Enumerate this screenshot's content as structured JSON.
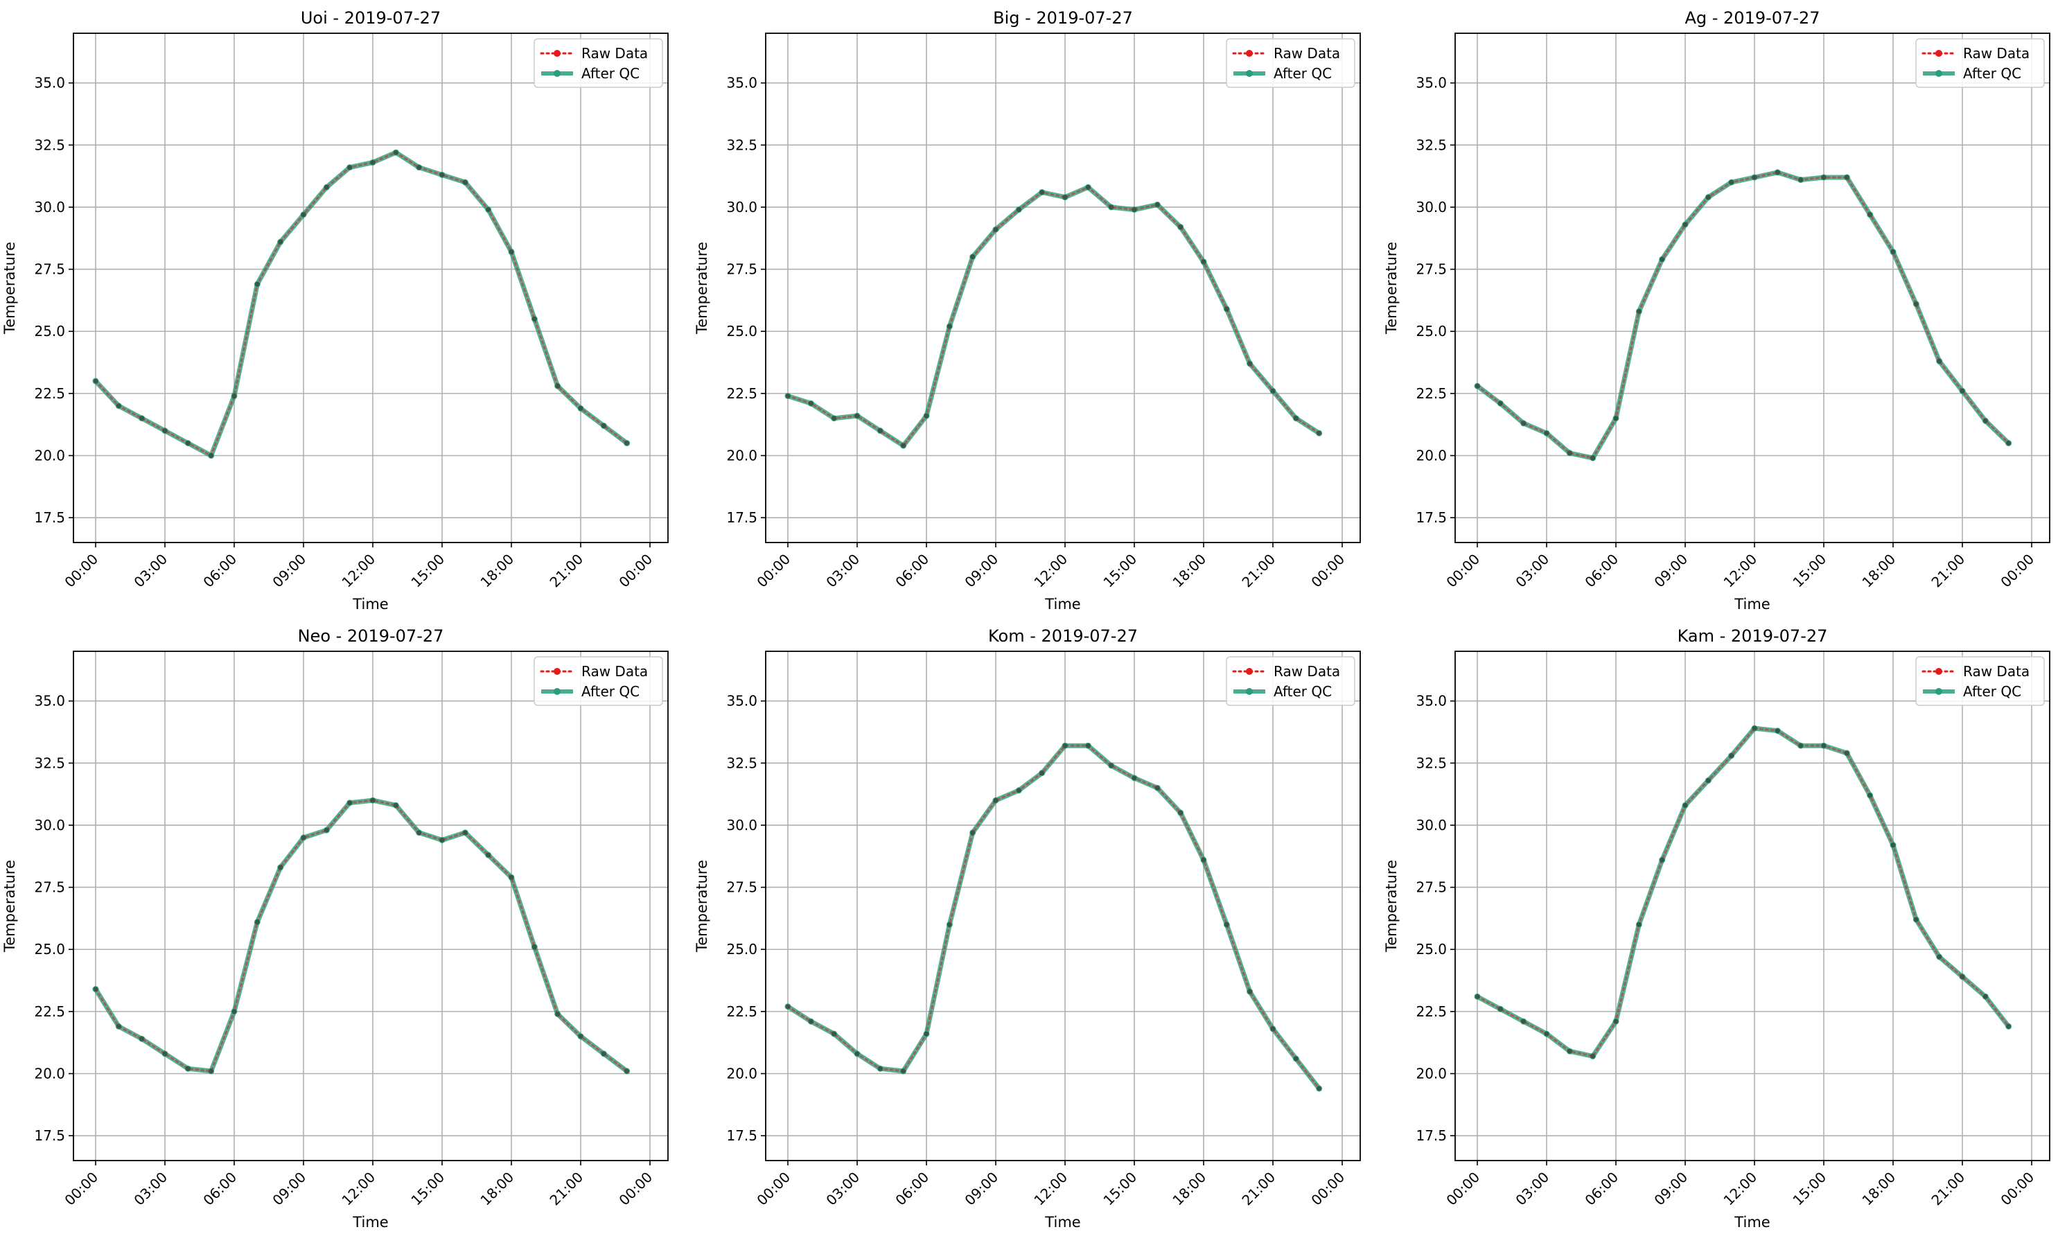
{
  "chart_data": [
    {
      "type": "line",
      "title": "Uoi - 2019-07-27",
      "xlabel": "Time",
      "ylabel": "Temperature",
      "ylim": [
        16.5,
        37.0
      ],
      "xlim": [
        "00:00",
        "24:00"
      ],
      "y_ticks": [
        "17.5",
        "20.0",
        "22.5",
        "25.0",
        "27.5",
        "30.0",
        "32.5",
        "35.0"
      ],
      "x_ticks": [
        "00:00",
        "03:00",
        "06:00",
        "09:00",
        "12:00",
        "15:00",
        "18:00",
        "21:00",
        "00:00"
      ],
      "grid": true,
      "legend_position": "top-right",
      "x": [
        "00:00",
        "01:00",
        "02:00",
        "03:00",
        "04:00",
        "05:00",
        "06:00",
        "07:00",
        "08:00",
        "09:00",
        "10:00",
        "11:00",
        "12:00",
        "13:00",
        "14:00",
        "15:00",
        "16:00",
        "17:00",
        "18:00",
        "19:00",
        "20:00",
        "21:00",
        "22:00",
        "23:00"
      ],
      "series": [
        {
          "name": "Raw Data",
          "color": "#e41a1c",
          "values": [
            23.0,
            22.0,
            21.5,
            21.0,
            20.5,
            20.0,
            22.4,
            26.9,
            28.6,
            29.7,
            30.8,
            31.6,
            31.8,
            32.2,
            31.6,
            31.3,
            31.0,
            29.9,
            28.2,
            25.5,
            22.8,
            21.9,
            21.2,
            20.5
          ]
        },
        {
          "name": "After QC",
          "color": "#2a9d7c",
          "values": [
            23.0,
            22.0,
            21.5,
            21.0,
            20.5,
            20.0,
            22.4,
            26.9,
            28.6,
            29.7,
            30.8,
            31.6,
            31.8,
            32.2,
            31.6,
            31.3,
            31.0,
            29.9,
            28.2,
            25.5,
            22.8,
            21.9,
            21.2,
            20.5
          ]
        }
      ]
    },
    {
      "type": "line",
      "title": "Big - 2019-07-27",
      "xlabel": "Time",
      "ylabel": "Temperature",
      "ylim": [
        16.5,
        37.0
      ],
      "xlim": [
        "00:00",
        "24:00"
      ],
      "y_ticks": [
        "17.5",
        "20.0",
        "22.5",
        "25.0",
        "27.5",
        "30.0",
        "32.5",
        "35.0"
      ],
      "x_ticks": [
        "00:00",
        "03:00",
        "06:00",
        "09:00",
        "12:00",
        "15:00",
        "18:00",
        "21:00",
        "00:00"
      ],
      "grid": true,
      "legend_position": "top-right",
      "x": [
        "00:00",
        "01:00",
        "02:00",
        "03:00",
        "04:00",
        "05:00",
        "06:00",
        "07:00",
        "08:00",
        "09:00",
        "10:00",
        "11:00",
        "12:00",
        "13:00",
        "14:00",
        "15:00",
        "16:00",
        "17:00",
        "18:00",
        "19:00",
        "20:00",
        "21:00",
        "22:00",
        "23:00"
      ],
      "series": [
        {
          "name": "Raw Data",
          "color": "#e41a1c",
          "values": [
            22.4,
            22.1,
            21.5,
            21.6,
            21.0,
            20.4,
            21.6,
            25.2,
            28.0,
            29.1,
            29.9,
            30.6,
            30.4,
            30.8,
            30.0,
            29.9,
            30.1,
            29.2,
            27.8,
            25.9,
            23.7,
            22.6,
            21.5,
            20.9
          ]
        },
        {
          "name": "After QC",
          "color": "#2a9d7c",
          "values": [
            22.4,
            22.1,
            21.5,
            21.6,
            21.0,
            20.4,
            21.6,
            25.2,
            28.0,
            29.1,
            29.9,
            30.6,
            30.4,
            30.8,
            30.0,
            29.9,
            30.1,
            29.2,
            27.8,
            25.9,
            23.7,
            22.6,
            21.5,
            20.9
          ]
        }
      ]
    },
    {
      "type": "line",
      "title": "Ag - 2019-07-27",
      "xlabel": "Time",
      "ylabel": "Temperature",
      "ylim": [
        16.5,
        37.0
      ],
      "xlim": [
        "00:00",
        "24:00"
      ],
      "y_ticks": [
        "17.5",
        "20.0",
        "22.5",
        "25.0",
        "27.5",
        "30.0",
        "32.5",
        "35.0"
      ],
      "x_ticks": [
        "00:00",
        "03:00",
        "06:00",
        "09:00",
        "12:00",
        "15:00",
        "18:00",
        "21:00",
        "00:00"
      ],
      "grid": true,
      "legend_position": "top-right",
      "x": [
        "00:00",
        "01:00",
        "02:00",
        "03:00",
        "04:00",
        "05:00",
        "06:00",
        "07:00",
        "08:00",
        "09:00",
        "10:00",
        "11:00",
        "12:00",
        "13:00",
        "14:00",
        "15:00",
        "16:00",
        "17:00",
        "18:00",
        "19:00",
        "20:00",
        "21:00",
        "22:00",
        "23:00"
      ],
      "series": [
        {
          "name": "Raw Data",
          "color": "#e41a1c",
          "values": [
            22.8,
            22.1,
            21.3,
            20.9,
            20.1,
            19.9,
            21.5,
            25.8,
            27.9,
            29.3,
            30.4,
            31.0,
            31.2,
            31.4,
            31.1,
            31.2,
            31.2,
            29.7,
            28.2,
            26.1,
            23.8,
            22.6,
            21.4,
            20.5
          ]
        },
        {
          "name": "After QC",
          "color": "#2a9d7c",
          "values": [
            22.8,
            22.1,
            21.3,
            20.9,
            20.1,
            19.9,
            21.5,
            25.8,
            27.9,
            29.3,
            30.4,
            31.0,
            31.2,
            31.4,
            31.1,
            31.2,
            31.2,
            29.7,
            28.2,
            26.1,
            23.8,
            22.6,
            21.4,
            20.5
          ]
        }
      ]
    },
    {
      "type": "line",
      "title": "Neo - 2019-07-27",
      "xlabel": "Time",
      "ylabel": "Temperature",
      "ylim": [
        16.5,
        37.0
      ],
      "xlim": [
        "00:00",
        "24:00"
      ],
      "y_ticks": [
        "17.5",
        "20.0",
        "22.5",
        "25.0",
        "27.5",
        "30.0",
        "32.5",
        "35.0"
      ],
      "x_ticks": [
        "00:00",
        "03:00",
        "06:00",
        "09:00",
        "12:00",
        "15:00",
        "18:00",
        "21:00",
        "00:00"
      ],
      "grid": true,
      "legend_position": "top-right",
      "x": [
        "00:00",
        "01:00",
        "02:00",
        "03:00",
        "04:00",
        "05:00",
        "06:00",
        "07:00",
        "08:00",
        "09:00",
        "10:00",
        "11:00",
        "12:00",
        "13:00",
        "14:00",
        "15:00",
        "16:00",
        "17:00",
        "18:00",
        "19:00",
        "20:00",
        "21:00",
        "22:00",
        "23:00"
      ],
      "series": [
        {
          "name": "Raw Data",
          "color": "#e41a1c",
          "values": [
            23.4,
            21.9,
            21.4,
            20.8,
            20.2,
            20.1,
            22.5,
            26.1,
            28.3,
            29.5,
            29.8,
            30.9,
            31.0,
            30.8,
            29.7,
            29.4,
            29.7,
            28.8,
            27.9,
            25.1,
            22.4,
            21.5,
            20.8,
            20.1
          ]
        },
        {
          "name": "After QC",
          "color": "#2a9d7c",
          "values": [
            23.4,
            21.9,
            21.4,
            20.8,
            20.2,
            20.1,
            22.5,
            26.1,
            28.3,
            29.5,
            29.8,
            30.9,
            31.0,
            30.8,
            29.7,
            29.4,
            29.7,
            28.8,
            27.9,
            25.1,
            22.4,
            21.5,
            20.8,
            20.1
          ]
        }
      ]
    },
    {
      "type": "line",
      "title": "Kom - 2019-07-27",
      "xlabel": "Time",
      "ylabel": "Temperature",
      "ylim": [
        16.5,
        37.0
      ],
      "xlim": [
        "00:00",
        "24:00"
      ],
      "y_ticks": [
        "17.5",
        "20.0",
        "22.5",
        "25.0",
        "27.5",
        "30.0",
        "32.5",
        "35.0"
      ],
      "x_ticks": [
        "00:00",
        "03:00",
        "06:00",
        "09:00",
        "12:00",
        "15:00",
        "18:00",
        "21:00",
        "00:00"
      ],
      "grid": true,
      "legend_position": "top-right",
      "x": [
        "00:00",
        "01:00",
        "02:00",
        "03:00",
        "04:00",
        "05:00",
        "06:00",
        "07:00",
        "08:00",
        "09:00",
        "10:00",
        "11:00",
        "12:00",
        "13:00",
        "14:00",
        "15:00",
        "16:00",
        "17:00",
        "18:00",
        "19:00",
        "20:00",
        "21:00",
        "22:00",
        "23:00"
      ],
      "series": [
        {
          "name": "Raw Data",
          "color": "#e41a1c",
          "values": [
            22.7,
            22.1,
            21.6,
            20.8,
            20.2,
            20.1,
            21.6,
            26.0,
            29.7,
            31.0,
            31.4,
            32.1,
            33.2,
            33.2,
            32.4,
            31.9,
            31.5,
            30.5,
            28.6,
            26.0,
            23.3,
            21.8,
            20.6,
            19.4
          ]
        },
        {
          "name": "After QC",
          "color": "#2a9d7c",
          "values": [
            22.7,
            22.1,
            21.6,
            20.8,
            20.2,
            20.1,
            21.6,
            26.0,
            29.7,
            31.0,
            31.4,
            32.1,
            33.2,
            33.2,
            32.4,
            31.9,
            31.5,
            30.5,
            28.6,
            26.0,
            23.3,
            21.8,
            20.6,
            19.4
          ]
        }
      ]
    },
    {
      "type": "line",
      "title": "Kam - 2019-07-27",
      "xlabel": "Time",
      "ylabel": "Temperature",
      "ylim": [
        16.5,
        37.0
      ],
      "xlim": [
        "00:00",
        "24:00"
      ],
      "y_ticks": [
        "17.5",
        "20.0",
        "22.5",
        "25.0",
        "27.5",
        "30.0",
        "32.5",
        "35.0"
      ],
      "x_ticks": [
        "00:00",
        "03:00",
        "06:00",
        "09:00",
        "12:00",
        "15:00",
        "18:00",
        "21:00",
        "00:00"
      ],
      "grid": true,
      "legend_position": "top-right",
      "x": [
        "00:00",
        "01:00",
        "02:00",
        "03:00",
        "04:00",
        "05:00",
        "06:00",
        "07:00",
        "08:00",
        "09:00",
        "10:00",
        "11:00",
        "12:00",
        "13:00",
        "14:00",
        "15:00",
        "16:00",
        "17:00",
        "18:00",
        "19:00",
        "20:00",
        "21:00",
        "22:00",
        "23:00"
      ],
      "series": [
        {
          "name": "Raw Data",
          "color": "#e41a1c",
          "values": [
            23.1,
            22.6,
            22.1,
            21.6,
            20.9,
            20.7,
            22.1,
            26.0,
            28.6,
            30.8,
            31.8,
            32.8,
            33.9,
            33.8,
            33.2,
            33.2,
            32.9,
            31.2,
            29.2,
            26.2,
            24.7,
            23.9,
            23.1,
            21.9
          ]
        },
        {
          "name": "After QC",
          "color": "#2a9d7c",
          "values": [
            23.1,
            22.6,
            22.1,
            21.6,
            20.9,
            20.7,
            22.1,
            26.0,
            28.6,
            30.8,
            31.8,
            32.8,
            33.9,
            33.8,
            33.2,
            33.2,
            32.9,
            31.2,
            29.2,
            26.2,
            24.7,
            23.9,
            23.1,
            21.9
          ]
        }
      ]
    }
  ]
}
